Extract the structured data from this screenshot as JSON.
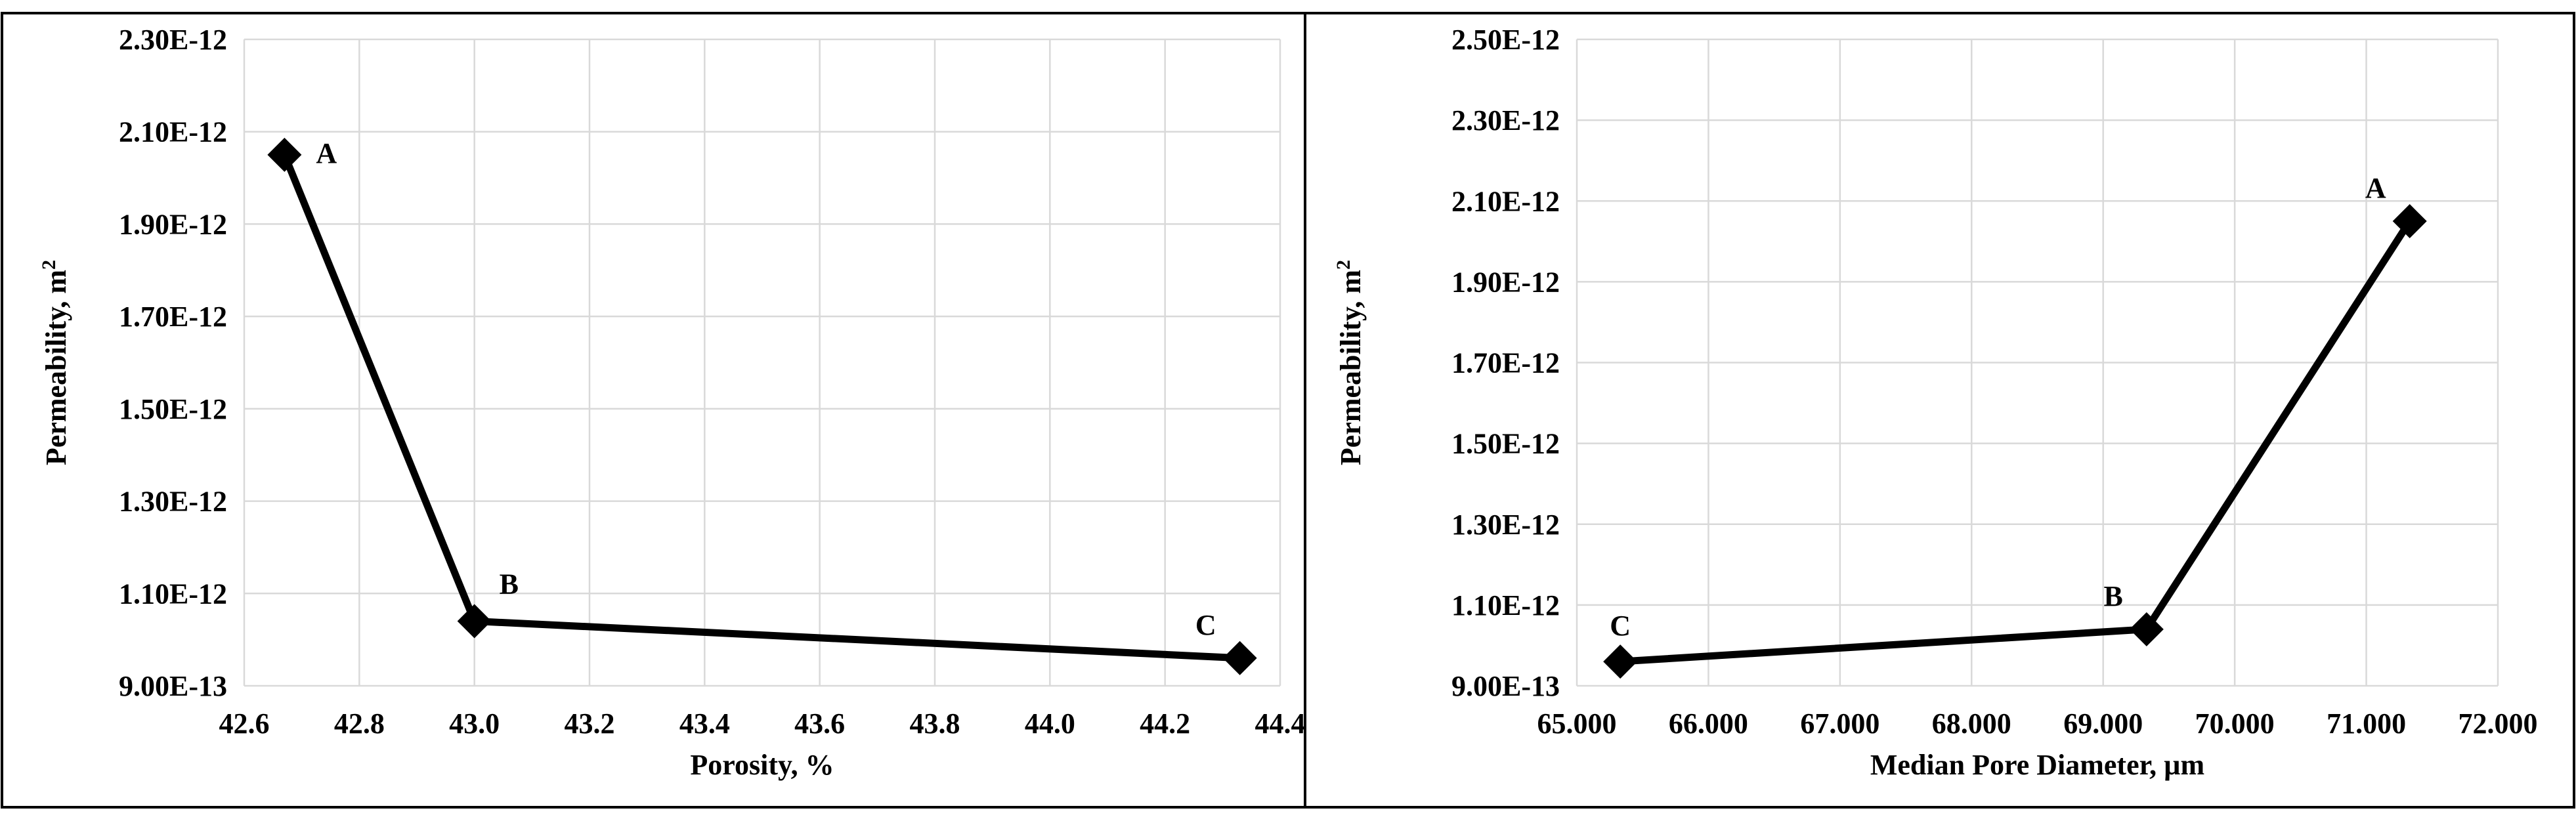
{
  "chart_data": [
    {
      "type": "line",
      "xlabel": "Porosity, %",
      "ylabel": "Permeability, m",
      "ylabel_superscript": "2",
      "xlim": [
        42.6,
        44.4
      ],
      "ylim": [
        9e-13,
        2.3e-12
      ],
      "x_ticks": [
        42.6,
        42.8,
        43.0,
        43.2,
        43.4,
        43.6,
        43.8,
        44.0,
        44.2,
        44.4
      ],
      "x_tick_labels": [
        "42.6",
        "42.8",
        "43.0",
        "43.2",
        "43.4",
        "43.6",
        "43.8",
        "44.0",
        "44.2",
        "44.4"
      ],
      "y_ticks": [
        9e-13,
        1.1e-12,
        1.3e-12,
        1.5e-12,
        1.7e-12,
        1.9e-12,
        2.1e-12,
        2.3e-12
      ],
      "y_tick_labels": [
        "9.00E-13",
        "1.10E-12",
        "1.30E-12",
        "1.50E-12",
        "1.70E-12",
        "1.90E-12",
        "2.10E-12",
        "2.30E-12"
      ],
      "grid": true,
      "marker": "diamond",
      "color": "#000000",
      "points": [
        {
          "label": "A",
          "x": 42.67,
          "y": 2.05e-12,
          "label_pos": "right"
        },
        {
          "label": "B",
          "x": 43.0,
          "y": 1.04e-12,
          "label_pos": "above-right"
        },
        {
          "label": "C",
          "x": 44.33,
          "y": 9.6e-13,
          "label_pos": "above-left"
        }
      ]
    },
    {
      "type": "line",
      "xlabel": "Median Pore Diameter, µm",
      "ylabel": "Permeability, m",
      "ylabel_superscript": "2",
      "xlim": [
        65.0,
        72.0
      ],
      "ylim": [
        9e-13,
        2.5e-12
      ],
      "x_ticks": [
        65,
        66,
        67,
        68,
        69,
        70,
        71,
        72
      ],
      "x_tick_labels": [
        "65.000",
        "66.000",
        "67.000",
        "68.000",
        "69.000",
        "70.000",
        "71.000",
        "72.000"
      ],
      "y_ticks": [
        9e-13,
        1.1e-12,
        1.3e-12,
        1.5e-12,
        1.7e-12,
        1.9e-12,
        2.1e-12,
        2.3e-12,
        2.5e-12
      ],
      "y_tick_labels": [
        "9.00E-13",
        "1.10E-12",
        "1.30E-12",
        "1.50E-12",
        "1.70E-12",
        "1.90E-12",
        "2.10E-12",
        "2.30E-12",
        "2.50E-12"
      ],
      "grid": true,
      "marker": "diamond",
      "color": "#000000",
      "points": [
        {
          "label": "C",
          "x": 65.33,
          "y": 9.6e-13,
          "label_pos": "above"
        },
        {
          "label": "B",
          "x": 69.33,
          "y": 1.04e-12,
          "label_pos": "above-left"
        },
        {
          "label": "A",
          "x": 71.33,
          "y": 2.05e-12,
          "label_pos": "above-left"
        }
      ]
    }
  ]
}
